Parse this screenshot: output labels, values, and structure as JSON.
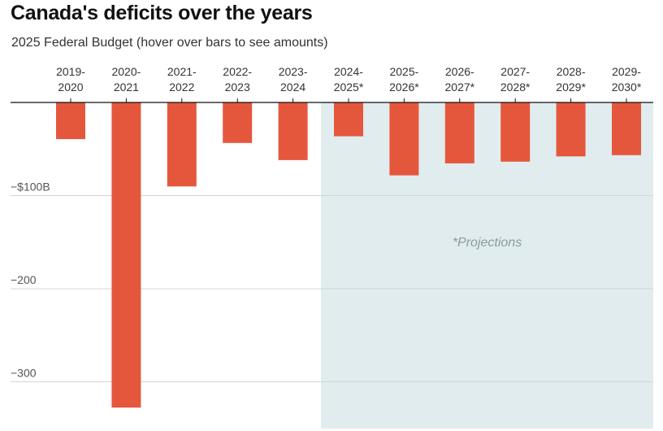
{
  "title": "Canada's deficits over the years",
  "subtitle": "2025 Federal Budget (hover over bars to see amounts)",
  "colors": {
    "bar": "#e5573c",
    "projection_band": "#e1ecee",
    "grid": "#d4d4d4",
    "axis": "#111111"
  },
  "chart_data": {
    "type": "bar",
    "title": "Canada's deficits over the years",
    "subtitle": "2025 Federal Budget (hover over bars to see amounts)",
    "categories": [
      [
        "2019-",
        "2020"
      ],
      [
        "2020-",
        "2021"
      ],
      [
        "2021-",
        "2022"
      ],
      [
        "2022-",
        "2023"
      ],
      [
        "2023-",
        "2024"
      ],
      [
        "2024-",
        "2025*"
      ],
      [
        "2025-",
        "2026*"
      ],
      [
        "2026-",
        "2027*"
      ],
      [
        "2027-",
        "2028*"
      ],
      [
        "2028-",
        "2029*"
      ],
      [
        "2029-",
        "2030*"
      ]
    ],
    "values": [
      -39.4,
      -327.7,
      -90.2,
      -43.5,
      -61.9,
      -36.3,
      -78.3,
      -65.4,
      -63.6,
      -57.9,
      -56.6
    ],
    "ylim": [
      -350,
      0
    ],
    "yticks": [
      {
        "value": -100,
        "label": "−$100B"
      },
      {
        "value": -200,
        "label": "−200"
      },
      {
        "value": -300,
        "label": "−300"
      }
    ],
    "grid": true,
    "projection": {
      "start_index": 5,
      "label": "*Projections"
    }
  }
}
